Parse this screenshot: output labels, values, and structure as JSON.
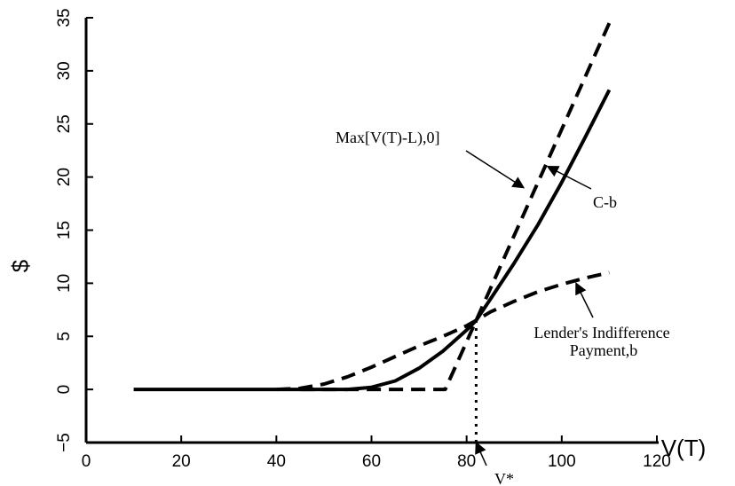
{
  "chart_data": {
    "type": "line",
    "title": "",
    "xlabel": "V(T)",
    "ylabel": "$",
    "xlim": [
      0,
      120
    ],
    "ylim": [
      -5,
      35
    ],
    "x_ticks": [
      0,
      20,
      40,
      60,
      80,
      100,
      120
    ],
    "y_ticks": [
      -5,
      0,
      5,
      10,
      15,
      20,
      25,
      30,
      35
    ],
    "grid": false,
    "series": [
      {
        "name": "Max[V(T)-L),0]",
        "style": "dashed",
        "points": [
          [
            45,
            0
          ],
          [
            75.5,
            0
          ],
          [
            110,
            34.5
          ]
        ]
      },
      {
        "name": "C-b",
        "style": "solid",
        "points": [
          [
            10,
            0
          ],
          [
            41,
            0
          ],
          [
            55,
            0
          ],
          [
            60,
            0.2
          ],
          [
            65,
            0.8
          ],
          [
            70,
            2.0
          ],
          [
            75,
            3.6
          ],
          [
            80,
            5.6
          ],
          [
            82,
            6.5
          ],
          [
            85,
            8.5
          ],
          [
            90,
            11.9
          ],
          [
            95,
            15.5
          ],
          [
            100,
            19.5
          ],
          [
            105,
            23.8
          ],
          [
            110,
            28.2
          ]
        ]
      },
      {
        "name": "Lender's Indifference Payment,b",
        "style": "dashed",
        "points": [
          [
            40,
            0
          ],
          [
            45,
            0.1
          ],
          [
            50,
            0.5
          ],
          [
            55,
            1.2
          ],
          [
            60,
            2.1
          ],
          [
            65,
            3.1
          ],
          [
            70,
            4.1
          ],
          [
            75,
            5.0
          ],
          [
            80,
            6.0
          ],
          [
            82,
            6.5
          ],
          [
            85,
            7.3
          ],
          [
            90,
            8.3
          ],
          [
            95,
            9.2
          ],
          [
            100,
            9.9
          ],
          [
            105,
            10.5
          ],
          [
            110,
            11.0
          ]
        ]
      }
    ],
    "reference_lines": [
      {
        "x": 82,
        "y_from": -5,
        "y_to": 6.5,
        "style": "dotted"
      }
    ],
    "annotations": [
      {
        "text": "Max[V(T)-L),0]",
        "points_to": [
          92,
          19
        ]
      },
      {
        "text": "C-b",
        "points_to": [
          97,
          21
        ]
      },
      {
        "text": "Lender's Indifference",
        "points_to": [
          103,
          10
        ]
      },
      {
        "text": "Payment,b"
      },
      {
        "text": "V*",
        "points_to": [
          82,
          -5
        ]
      }
    ]
  }
}
